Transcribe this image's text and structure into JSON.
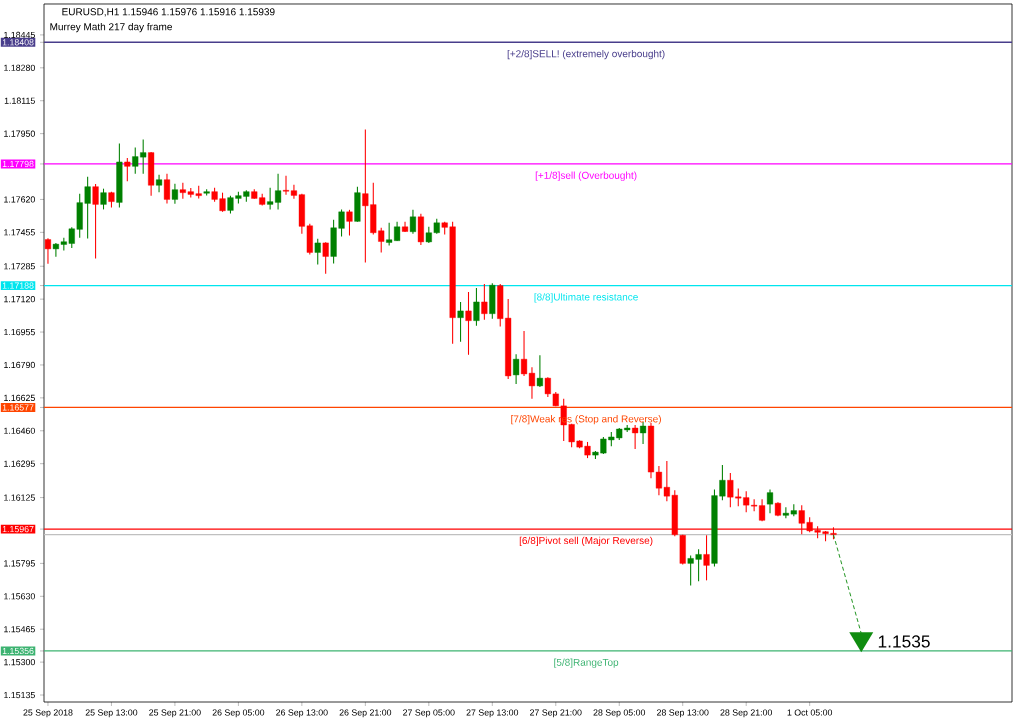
{
  "chart_data": {
    "type": "candlestick",
    "title": "EURUSD,H1  1.15946 1.15976 1.15916 1.15939",
    "subtitle": "Murrey Math 217 day frame",
    "categories": [
      "25 Sep 2018",
      null,
      null,
      null,
      null,
      null,
      null,
      null,
      "25 Sep 13:00",
      null,
      null,
      null,
      null,
      null,
      null,
      null,
      "25 Sep 21:00",
      null,
      null,
      null,
      null,
      null,
      null,
      null,
      "26 Sep 05:00",
      null,
      null,
      null,
      null,
      null,
      null,
      null,
      "26 Sep 13:00",
      null,
      null,
      null,
      null,
      null,
      null,
      null,
      "26 Sep 21:00",
      null,
      null,
      null,
      null,
      null,
      null,
      null,
      "27 Sep 05:00",
      null,
      null,
      null,
      null,
      null,
      null,
      null,
      "27 Sep 13:00",
      null,
      null,
      null,
      null,
      null,
      null,
      null,
      "27 Sep 21:00",
      null,
      null,
      null,
      null,
      null,
      null,
      null,
      "28 Sep 05:00",
      null,
      null,
      null,
      null,
      null,
      null,
      null,
      "28 Sep 13:00",
      null,
      null,
      null,
      null,
      null,
      null,
      null,
      "28 Sep 21:00",
      null,
      null,
      null,
      null,
      null,
      null,
      null,
      "1 Oct 05:00",
      null,
      null,
      null
    ],
    "ohlc": [
      [
        1.17419,
        1.17426,
        1.17297,
        1.17372
      ],
      [
        1.17372,
        1.17402,
        1.17332,
        1.17396
      ],
      [
        1.17394,
        1.17428,
        1.17364,
        1.17408
      ],
      [
        1.17399,
        1.1748,
        1.17377,
        1.17473
      ],
      [
        1.1747,
        1.17649,
        1.17428,
        1.17604
      ],
      [
        1.176,
        1.17734,
        1.17424,
        1.17684
      ],
      [
        1.17684,
        1.17697,
        1.17324,
        1.17595
      ],
      [
        1.17595,
        1.17674,
        1.1757,
        1.17654
      ],
      [
        1.17654,
        1.17659,
        1.1758,
        1.17609
      ],
      [
        1.17605,
        1.179,
        1.1758,
        1.17808
      ],
      [
        1.17808,
        1.17828,
        1.17711,
        1.17786
      ],
      [
        1.17786,
        1.1788,
        1.17749,
        1.17835
      ],
      [
        1.17832,
        1.1792,
        1.17749,
        1.17855
      ],
      [
        1.17855,
        1.17858,
        1.17639,
        1.17691
      ],
      [
        1.17691,
        1.17744,
        1.17656,
        1.17719
      ],
      [
        1.17719,
        1.17749,
        1.176,
        1.1762
      ],
      [
        1.1762,
        1.17699,
        1.17599,
        1.17669
      ],
      [
        1.17669,
        1.17704,
        1.17624,
        1.17654
      ],
      [
        1.17659,
        1.17677,
        1.1763,
        1.17645
      ],
      [
        1.17649,
        1.17689,
        1.17625,
        1.17639
      ],
      [
        1.17651,
        1.17671,
        1.1764,
        1.17659
      ],
      [
        1.17659,
        1.17679,
        1.17609,
        1.1762
      ],
      [
        1.17624,
        1.17654,
        1.17558,
        1.17563
      ],
      [
        1.17565,
        1.17639,
        1.1755,
        1.17629
      ],
      [
        1.17625,
        1.17659,
        1.176,
        1.17639
      ],
      [
        1.17635,
        1.17666,
        1.17609,
        1.17659
      ],
      [
        1.17659,
        1.17671,
        1.17624,
        1.17625
      ],
      [
        1.17629,
        1.17649,
        1.1759,
        1.17595
      ],
      [
        1.17595,
        1.17679,
        1.1757,
        1.17609
      ],
      [
        1.17605,
        1.17749,
        1.1757,
        1.17664
      ],
      [
        1.17666,
        1.17739,
        1.17644,
        1.17661
      ],
      [
        1.17664,
        1.17694,
        1.17624,
        1.1764
      ],
      [
        1.17644,
        1.17648,
        1.17448,
        1.17485
      ],
      [
        1.17488,
        1.17498,
        1.17344,
        1.17354
      ],
      [
        1.17354,
        1.17423,
        1.17294,
        1.17402
      ],
      [
        1.17402,
        1.17405,
        1.17248,
        1.17334
      ],
      [
        1.17334,
        1.17518,
        1.17299,
        1.17478
      ],
      [
        1.17475,
        1.1757,
        1.17434,
        1.17558
      ],
      [
        1.17558,
        1.17568,
        1.17439,
        1.1751
      ],
      [
        1.1751,
        1.17684,
        1.17508,
        1.17654
      ],
      [
        1.17649,
        1.17971,
        1.17304,
        1.17588
      ],
      [
        1.17594,
        1.17704,
        1.17444,
        1.17453
      ],
      [
        1.17463,
        1.17478,
        1.17354,
        1.17409
      ],
      [
        1.17404,
        1.17503,
        1.17389,
        1.17418
      ],
      [
        1.17413,
        1.17508,
        1.17411,
        1.17483
      ],
      [
        1.17483,
        1.17508,
        1.17457,
        1.17459
      ],
      [
        1.17458,
        1.17568,
        1.17448,
        1.17533
      ],
      [
        1.17533,
        1.17548,
        1.17392,
        1.17407
      ],
      [
        1.17407,
        1.17483,
        1.17402,
        1.17453
      ],
      [
        1.17453,
        1.17523,
        1.17448,
        1.17503
      ],
      [
        1.17503,
        1.17508,
        1.17444,
        1.1748
      ],
      [
        1.17483,
        1.17508,
        1.16896,
        1.17027
      ],
      [
        1.17027,
        1.17106,
        1.16906,
        1.17061
      ],
      [
        1.17061,
        1.17156,
        1.16841,
        1.17012
      ],
      [
        1.17012,
        1.17176,
        1.16987,
        1.17106
      ],
      [
        1.17106,
        1.17196,
        1.17017,
        1.17047
      ],
      [
        1.17047,
        1.172,
        1.17022,
        1.1719
      ],
      [
        1.17188,
        1.17196,
        1.16983,
        1.17022
      ],
      [
        1.17025,
        1.17121,
        1.1672,
        1.16735
      ],
      [
        1.1674,
        1.16844,
        1.16695,
        1.16819
      ],
      [
        1.16819,
        1.1696,
        1.16735,
        1.16745
      ],
      [
        1.16749,
        1.16779,
        1.1662,
        1.16685
      ],
      [
        1.16685,
        1.16839,
        1.1668,
        1.16724
      ],
      [
        1.16724,
        1.16729,
        1.1663,
        1.16645
      ],
      [
        1.16645,
        1.16655,
        1.16583,
        1.16585
      ],
      [
        1.16585,
        1.1662,
        1.16409,
        1.16489
      ],
      [
        1.16492,
        1.16495,
        1.16378,
        1.16404
      ],
      [
        1.16409,
        1.16412,
        1.16373,
        1.16378
      ],
      [
        1.16383,
        1.16404,
        1.16323,
        1.16338
      ],
      [
        1.16338,
        1.16358,
        1.16318,
        1.16353
      ],
      [
        1.16348,
        1.16429,
        1.16343,
        1.16419
      ],
      [
        1.16414,
        1.16454,
        1.16383,
        1.16429
      ],
      [
        1.16424,
        1.16474,
        1.16414,
        1.16469
      ],
      [
        1.16464,
        1.16489,
        1.16454,
        1.16474
      ],
      [
        1.16474,
        1.16489,
        1.16368,
        1.16449
      ],
      [
        1.16449,
        1.16504,
        1.16394,
        1.16484
      ],
      [
        1.16484,
        1.16499,
        1.16222,
        1.16253
      ],
      [
        1.16253,
        1.16283,
        1.16137,
        1.16172
      ],
      [
        1.16177,
        1.16308,
        1.16107,
        1.16132
      ],
      [
        1.16137,
        1.16162,
        1.15931,
        1.15939
      ],
      [
        1.15936,
        1.15939,
        1.1579,
        1.15795
      ],
      [
        1.15795,
        1.15835,
        1.15684,
        1.1582
      ],
      [
        1.15815,
        1.15866,
        1.15705,
        1.1584
      ],
      [
        1.1584,
        1.15936,
        1.1571,
        1.15785
      ],
      [
        1.15795,
        1.16166,
        1.1578,
        1.16135
      ],
      [
        1.16132,
        1.16288,
        1.16112,
        1.16212
      ],
      [
        1.16212,
        1.16248,
        1.16077,
        1.16127
      ],
      [
        1.16129,
        1.16171,
        1.16082,
        1.16122
      ],
      [
        1.16125,
        1.16157,
        1.16052,
        1.16087
      ],
      [
        1.16087,
        1.16117,
        1.16057,
        1.16082
      ],
      [
        1.16085,
        1.16117,
        1.16006,
        1.16011
      ],
      [
        1.16092,
        1.16166,
        1.16047,
        1.1615
      ],
      [
        1.16097,
        1.16102,
        1.16031,
        1.16036
      ],
      [
        1.16036,
        1.16077,
        1.16021,
        1.16047
      ],
      [
        1.16042,
        1.16092,
        1.16031,
        1.1606
      ],
      [
        1.1606,
        1.16087,
        1.15941,
        1.15996
      ],
      [
        1.16001,
        1.16026,
        1.15951,
        1.15958
      ],
      [
        1.15961,
        1.15981,
        1.15921,
        1.15951
      ],
      [
        1.15954,
        1.15958,
        1.15906,
        1.15944
      ],
      [
        1.15946,
        1.15976,
        1.15916,
        1.15939
      ]
    ],
    "colors": [
      "#ff0000",
      "#008000",
      "#008000",
      "#008000",
      "#008000",
      "#008000",
      "#ff0000",
      "#008000",
      "#ff0000",
      "#008000",
      "#ff0000",
      "#008000",
      "#008000",
      "#ff0000",
      "#008000",
      "#ff0000",
      "#008000",
      "#ff0000",
      "#ff0000",
      "#ff0000",
      "#008000",
      "#ff0000",
      "#ff0000",
      "#008000",
      "#008000",
      "#008000",
      "#ff0000",
      "#ff0000",
      "#008000",
      "#008000",
      "#ff0000",
      "#ff0000",
      "#ff0000",
      "#ff0000",
      "#008000",
      "#ff0000",
      "#008000",
      "#008000",
      "#ff0000",
      "#008000",
      "#ff0000",
      "#ff0000",
      "#ff0000",
      "#008000",
      "#008000",
      "#ff0000",
      "#008000",
      "#ff0000",
      "#008000",
      "#008000",
      "#ff0000",
      "#ff0000",
      "#008000",
      "#ff0000",
      "#008000",
      "#ff0000",
      "#008000",
      "#ff0000",
      "#ff0000",
      "#008000",
      "#ff0000",
      "#ff0000",
      "#008000",
      "#ff0000",
      "#ff0000",
      "#ff0000",
      "#ff0000",
      "#ff0000",
      "#ff0000",
      "#008000",
      "#008000",
      "#008000",
      "#008000",
      "#008000",
      "#ff0000",
      "#008000",
      "#ff0000",
      "#ff0000",
      "#ff0000",
      "#ff0000",
      "#ff0000",
      "#008000",
      "#008000",
      "#ff0000",
      "#008000",
      "#008000",
      "#ff0000",
      "#ff0000",
      "#ff0000",
      "#ff0000",
      "#ff0000",
      "#008000",
      "#ff0000",
      "#008000",
      "#008000",
      "#ff0000",
      "#ff0000",
      "#ff0000",
      "#ff0000",
      "#ff0000"
    ],
    "ylim": [
      1.151,
      1.186
    ],
    "yticks": [
      {
        "value": 1.15135,
        "label": "1.15135"
      },
      {
        "value": 1.153,
        "label": "1.15300"
      },
      {
        "value": 1.15356,
        "label": "1.15356"
      },
      {
        "value": 1.15465,
        "label": "1.15465"
      },
      {
        "value": 1.1563,
        "label": "1.15630"
      },
      {
        "value": 1.15795,
        "label": "1.15795"
      },
      {
        "value": 1.15967,
        "label": "1.15967"
      },
      {
        "value": 1.16125,
        "label": "1.16125"
      },
      {
        "value": 1.16295,
        "label": "1.16295"
      },
      {
        "value": 1.1646,
        "label": "1.16460"
      },
      {
        "value": 1.16577,
        "label": "1.16577"
      },
      {
        "value": 1.16625,
        "label": "1.16625"
      },
      {
        "value": 1.1679,
        "label": "1.16790"
      },
      {
        "value": 1.16955,
        "label": "1.16955"
      },
      {
        "value": 1.1712,
        "label": "1.17120"
      },
      {
        "value": 1.17188,
        "label": "1.17188"
      },
      {
        "value": 1.17285,
        "label": "1.17285"
      },
      {
        "value": 1.17455,
        "label": "1.17455"
      },
      {
        "value": 1.1762,
        "label": "1.17620"
      },
      {
        "value": 1.17798,
        "label": "1.17798"
      },
      {
        "value": 1.1795,
        "label": "1.17950"
      },
      {
        "value": 1.18115,
        "label": "1.18115"
      },
      {
        "value": 1.1828,
        "label": "1.18280"
      },
      {
        "value": 1.18408,
        "label": "1.18408"
      },
      {
        "value": 1.18445,
        "label": "1.18445"
      }
    ],
    "ref_lines": [
      {
        "axis": "y",
        "value": 1.18408,
        "label": "[+2/8]SELL! (extremely overbought)",
        "color": "#483d8b"
      },
      {
        "axis": "y",
        "value": 1.17798,
        "label": "[+1/8]sell (Overbought)",
        "color": "#ff00ff"
      },
      {
        "axis": "y",
        "value": 1.17188,
        "label": "[8/8]Ultimate resistance",
        "color": "#00e5ee"
      },
      {
        "axis": "y",
        "value": 1.16577,
        "label": "[7/8]Weak res (Stop and Reverse)",
        "color": "#ff4500"
      },
      {
        "axis": "y",
        "value": 1.15967,
        "label": "[6/8]Pivot sell (Major Reverse)",
        "color": "#ff0000"
      },
      {
        "axis": "y",
        "value": 1.15939,
        "color": "#c0c0c0"
      },
      {
        "axis": "y",
        "value": 1.15356,
        "label": "[5/8]RangeTop",
        "color": "#3cb371"
      }
    ],
    "annotations": [
      {
        "text": "1.1535",
        "y": 1.1535
      }
    ]
  }
}
